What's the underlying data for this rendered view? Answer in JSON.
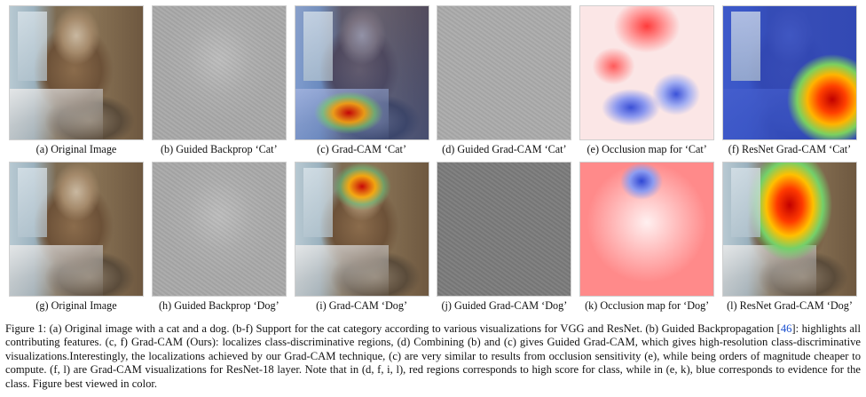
{
  "figure": {
    "row1": [
      {
        "caption": "(a) Original Image",
        "kind": "original"
      },
      {
        "caption": "(b) Guided Backprop ‘Cat’",
        "kind": "guided-backprop"
      },
      {
        "caption": "(c) Grad-CAM ‘Cat’",
        "kind": "grad-cam"
      },
      {
        "caption": "(d) Guided Grad-CAM ‘Cat’",
        "kind": "guided-grad-cam"
      },
      {
        "caption": "(e) Occlusion map for ‘Cat’",
        "kind": "occlusion-map"
      },
      {
        "caption": "(f) ResNet Grad-CAM ‘Cat’",
        "kind": "resnet-grad-cam"
      }
    ],
    "row2": [
      {
        "caption": "(g) Original Image",
        "kind": "original"
      },
      {
        "caption": "(h) Guided Backprop ‘Dog’",
        "kind": "guided-backprop"
      },
      {
        "caption": "(i) Grad-CAM ‘Dog’",
        "kind": "grad-cam"
      },
      {
        "caption": "(j) Guided Grad-CAM ‘Dog’",
        "kind": "guided-grad-cam"
      },
      {
        "caption": "(k) Occlusion map for ‘Dog’",
        "kind": "occlusion-map"
      },
      {
        "caption": "(l) ResNet Grad-CAM ‘Dog’",
        "kind": "resnet-grad-cam"
      }
    ],
    "caption_part1": "Figure 1: (a) Original image with a cat and a dog. (b-f) Support for the cat category according to various visualizations for VGG and ResNet. (b) Guided Backpropagation [",
    "caption_ref": "46",
    "caption_part2": "]: highlights all contributing features. (c, f) Grad-CAM (Ours): localizes class-discriminative regions, (d) Combining (b) and (c) gives Guided Grad-CAM, which gives high-resolution class-discriminative visualizations.Interestingly, the localizations achieved by our Grad-CAM technique, (c) are very similar to results from occlusion sensitivity (e), while being orders of magnitude cheaper to compute. (f, l) are Grad-CAM visualizations for ResNet-18 layer. Note that in (d, f, i, l), red regions corresponds to high score for class, while in (e, k), blue corresponds to evidence for the class. Figure best viewed in color."
  }
}
